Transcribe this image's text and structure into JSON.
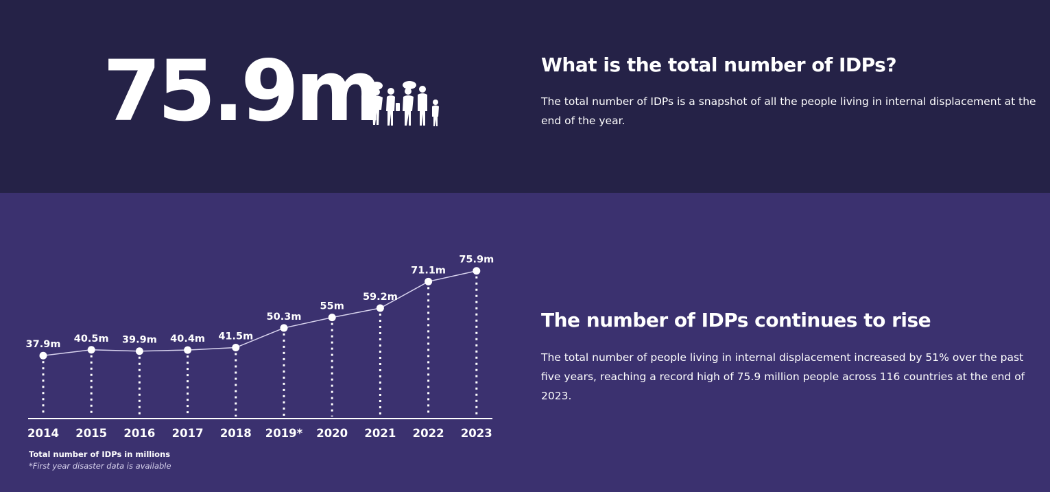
{
  "header": {
    "total_value": "75.9m",
    "people_icon": "family-silhouettes-icon"
  },
  "sections": {
    "total": {
      "heading": "What is the total number of IDPs?",
      "text": "The total number of IDPs is a snapshot of all the people living in internal displacement at the end of the year."
    },
    "rise": {
      "heading": "The number of IDPs continues to rise",
      "text": "The total number of people living in internal displacement increased by 51% over the past five years, reaching a record high of 75.9 million people across 116 countries at the end of 2023."
    }
  },
  "chart_data": {
    "type": "line",
    "categories": [
      "2014",
      "2015",
      "2016",
      "2017",
      "2018",
      "2019*",
      "2020",
      "2021",
      "2022",
      "2023"
    ],
    "values": [
      37.9,
      40.5,
      39.9,
      40.4,
      41.5,
      50.3,
      55,
      59.2,
      71.1,
      75.9
    ],
    "data_labels": [
      "37.9m",
      "40.5m",
      "39.9m",
      "40.4m",
      "41.5m",
      "50.3m",
      "55m",
      "59.2m",
      "71.1m",
      "75.9m"
    ],
    "xlabel": "Total number of IDPs in millions",
    "footnote": "*First year disaster data is available",
    "grid": false,
    "legend": "none",
    "colors": {
      "line": "#d8d3ee",
      "marker": "#ffffff",
      "axis": "#ffffff"
    }
  }
}
